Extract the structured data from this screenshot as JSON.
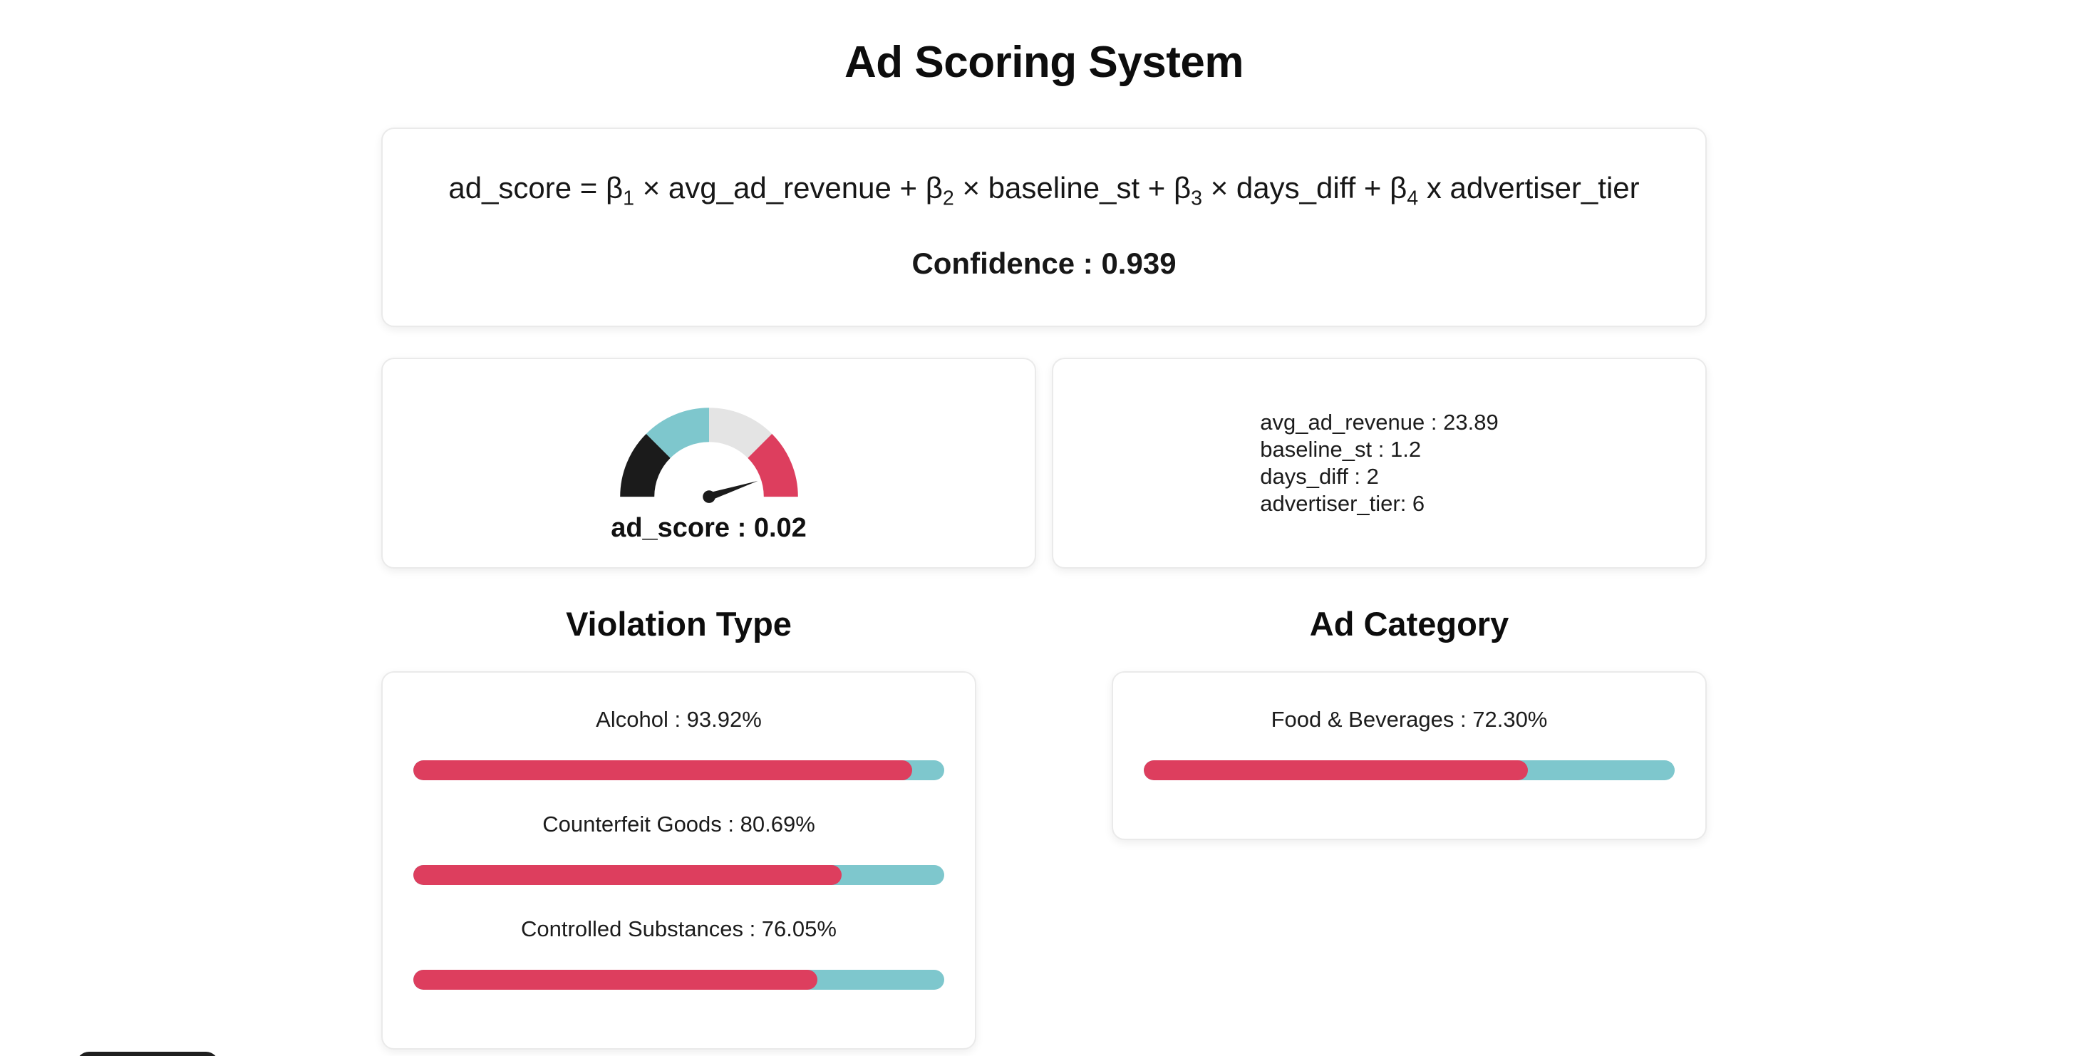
{
  "page_title": "Ad Scoring System",
  "formula": {
    "p1": "ad_score = β",
    "s1": "1",
    "p2": " × avg_ad_revenue + β",
    "s2": "2",
    "p3": " × baseline_st + β",
    "s3": "3",
    "p4": " × days_diff + β",
    "s4": "4",
    "p5": " x advertiser_tier",
    "confidence": "Confidence : 0.939"
  },
  "gauge": {
    "label": "ad_score : 0.02"
  },
  "inputs": {
    "lines": [
      "avg_ad_revenue : 23.89",
      "baseline_st : 1.2",
      "days_diff : 2",
      "advertiser_tier: 6"
    ]
  },
  "violation": {
    "title": "Violation Type",
    "bars": [
      {
        "label": "Alcohol : 93.92%"
      },
      {
        "label": "Counterfeit Goods : 80.69%"
      },
      {
        "label": "Controlled Substances : 76.05%"
      }
    ]
  },
  "ad_category": {
    "title": "Ad Category",
    "bars": [
      {
        "label": "Food & Beverages : 72.30%"
      }
    ]
  },
  "colors": {
    "accent_red": "#dd3e5e",
    "accent_teal": "#7ec7cd",
    "gauge_segments": [
      "#1b1b1b",
      "#7ec7cd",
      "#e4e4e4",
      "#dd3e5e"
    ],
    "needle": "#1b1b1b"
  },
  "chart_data": [
    {
      "type": "gauge",
      "title": "ad_score",
      "value": 0.02,
      "label": "ad_score : 0.02",
      "segments": [
        {
          "name": "segment-1",
          "color": "#1b1b1b"
        },
        {
          "name": "segment-2",
          "color": "#7ec7cd"
        },
        {
          "name": "segment-3",
          "color": "#e4e4e4"
        },
        {
          "name": "segment-4",
          "color": "#dd3e5e"
        }
      ]
    },
    {
      "type": "bar",
      "title": "Violation Type",
      "categories": [
        "Alcohol",
        "Counterfeit Goods",
        "Controlled Substances"
      ],
      "values": [
        93.92,
        80.69,
        76.05
      ],
      "unit": "%",
      "xlim": [
        0,
        100
      ],
      "bar_color": "#dd3e5e",
      "track_color": "#7ec7cd"
    },
    {
      "type": "bar",
      "title": "Ad Category",
      "categories": [
        "Food & Beverages"
      ],
      "values": [
        72.3
      ],
      "unit": "%",
      "xlim": [
        0,
        100
      ],
      "bar_color": "#dd3e5e",
      "track_color": "#7ec7cd"
    }
  ]
}
